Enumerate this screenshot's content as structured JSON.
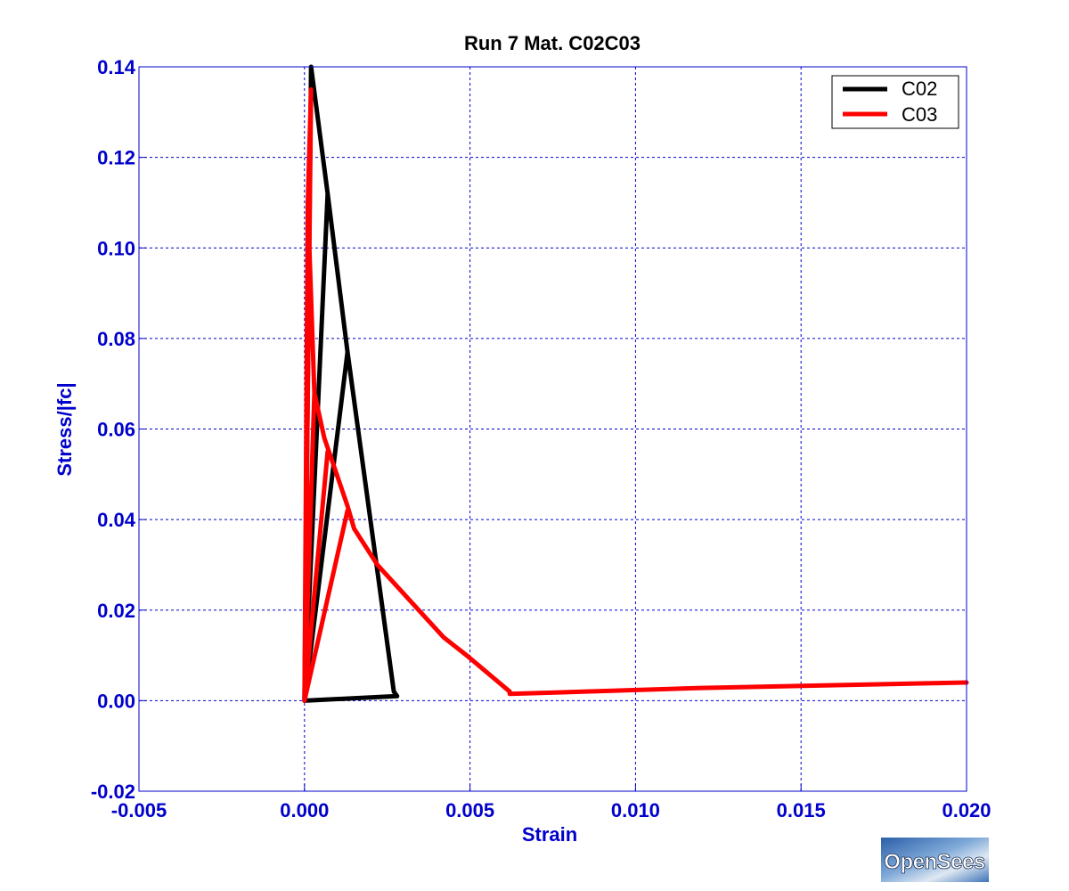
{
  "chart_data": {
    "type": "line",
    "title": "Run 7    Mat. C02C03",
    "xlabel": "Strain",
    "ylabel": "Stress/|fc|",
    "xlim": [
      -0.005,
      0.02
    ],
    "ylim": [
      -0.02,
      0.14
    ],
    "x_ticks": [
      {
        "value": -0.005,
        "label": "-0.005"
      },
      {
        "value": 0.0,
        "label": "0.000"
      },
      {
        "value": 0.005,
        "label": "0.005"
      },
      {
        "value": 0.01,
        "label": "0.010"
      },
      {
        "value": 0.015,
        "label": "0.015"
      },
      {
        "value": 0.02,
        "label": "0.020"
      }
    ],
    "y_ticks": [
      {
        "value": -0.02,
        "label": "-0.02"
      },
      {
        "value": 0.0,
        "label": "0.00"
      },
      {
        "value": 0.02,
        "label": "0.02"
      },
      {
        "value": 0.04,
        "label": "0.04"
      },
      {
        "value": 0.06,
        "label": "0.06"
      },
      {
        "value": 0.08,
        "label": "0.08"
      },
      {
        "value": 0.1,
        "label": "0.10"
      },
      {
        "value": 0.12,
        "label": "0.12"
      },
      {
        "value": 0.14,
        "label": "0.14"
      }
    ],
    "grid": true,
    "legend_position": "top-right",
    "series": [
      {
        "name": "C02",
        "color": "#000000",
        "x": [
          0.0,
          0.0002,
          0.0,
          0.0007,
          0.0,
          0.0013,
          0.0,
          0.0002,
          0.0007,
          0.0013,
          0.0027,
          0.0028,
          0.0
        ],
        "y": [
          0.0,
          0.14,
          0.0,
          0.112,
          0.0,
          0.077,
          0.0,
          0.14,
          0.112,
          0.077,
          0.002,
          0.001,
          0.0
        ]
      },
      {
        "name": "C03",
        "color": "#ff0000",
        "x": [
          0.0,
          0.0002,
          0.0001,
          0.0003,
          0.0,
          0.0007,
          0.0,
          0.0013,
          0.0,
          0.0001,
          0.0003,
          0.0006,
          0.0013,
          0.0015,
          0.0022,
          0.0032,
          0.0042,
          0.0049,
          0.0062,
          0.0062,
          0.012,
          0.02
        ],
        "y": [
          0.0,
          0.135,
          0.11,
          0.068,
          0.0,
          0.055,
          0.0,
          0.042,
          0.0,
          0.11,
          0.068,
          0.058,
          0.043,
          0.038,
          0.03,
          0.022,
          0.014,
          0.01,
          0.002,
          0.0015,
          0.0028,
          0.004
        ]
      }
    ]
  },
  "logo": {
    "text": "OpenSees"
  }
}
